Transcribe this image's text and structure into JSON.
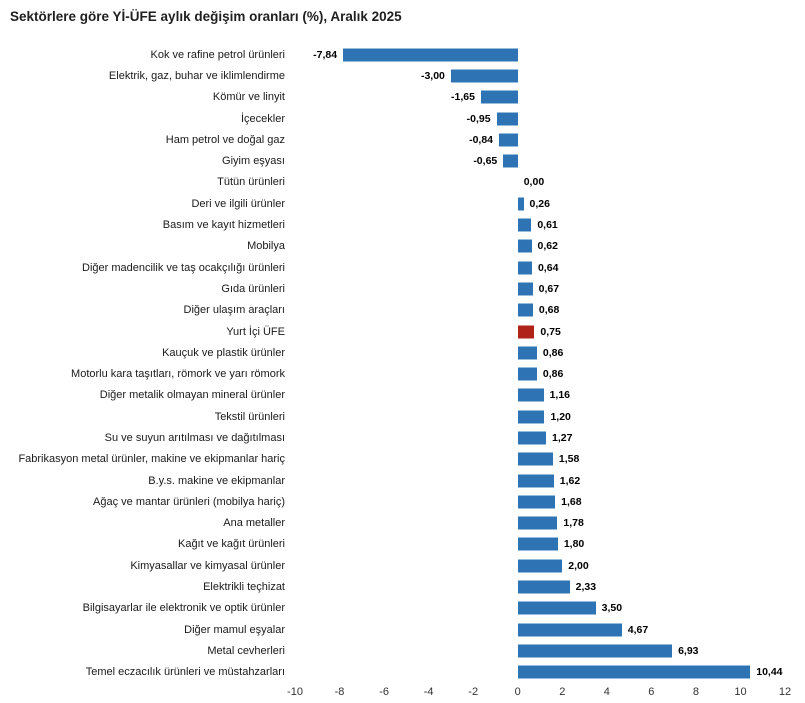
{
  "title": "Sektörlere göre Yİ-ÜFE aylık değişim oranları (%), Aralık 2025",
  "colors": {
    "bar": "#2E74B5",
    "highlight": "#B02318",
    "text": "#1A1A1A"
  },
  "chart_data": {
    "type": "bar",
    "orientation": "horizontal",
    "title": "Sektörlere göre Yİ-ÜFE aylık değişim oranları (%), Aralık 2025",
    "xlim": [
      -10,
      12
    ],
    "xticks": [
      -10,
      -8,
      -6,
      -4,
      -2,
      0,
      2,
      4,
      6,
      8,
      10,
      12
    ],
    "xtick_labels": [
      "-10",
      "-8",
      "-6",
      "-4",
      "-2",
      "0",
      "2",
      "4",
      "6",
      "8",
      "10",
      "12"
    ],
    "grid": false,
    "highlight_index": 13,
    "highlight_category": "Yurt İçi ÜFE",
    "categories": [
      "Kok ve rafine petrol ürünleri",
      "Elektrik, gaz, buhar ve iklimlendirme",
      "Kömür ve linyit",
      "İçecekler",
      "Ham petrol ve doğal gaz",
      "Giyim eşyası",
      "Tütün ürünleri",
      "Deri ve ilgili ürünler",
      "Basım ve kayıt hizmetleri",
      "Mobilya",
      "Diğer madencilik ve taş ocakçılığı ürünleri",
      "Gıda ürünleri",
      "Diğer ulaşım araçları",
      "Yurt İçi ÜFE",
      "Kauçuk ve plastik ürünler",
      "Motorlu kara taşıtları, römork ve yarı römork",
      "Diğer metalik olmayan mineral ürünler",
      "Tekstil ürünleri",
      "Su ve suyun arıtılması ve dağıtılması",
      "Fabrikasyon metal ürünler, makine ve ekipmanlar hariç",
      "B.y.s. makine ve ekipmanlar",
      "Ağaç ve mantar ürünleri (mobilya hariç)",
      "Ana metaller",
      "Kağıt ve kağıt ürünleri",
      "Kimyasallar ve kimyasal ürünler",
      "Elektrikli teçhizat",
      "Bilgisayarlar ile elektronik ve optik ürünler",
      "Diğer mamul eşyalar",
      "Metal cevherleri",
      "Temel eczacılık ürünleri ve müstahzarları"
    ],
    "values": [
      -7.84,
      -3.0,
      -1.65,
      -0.95,
      -0.84,
      -0.65,
      0.0,
      0.26,
      0.61,
      0.62,
      0.64,
      0.67,
      0.68,
      0.75,
      0.86,
      0.86,
      1.16,
      1.2,
      1.27,
      1.58,
      1.62,
      1.68,
      1.78,
      1.8,
      2.0,
      2.33,
      3.5,
      4.67,
      6.93,
      10.44
    ],
    "value_labels": [
      "-7,84",
      "-3,00",
      "-1,65",
      "-0,95",
      "-0,84",
      "-0,65",
      "0,00",
      "0,26",
      "0,61",
      "0,62",
      "0,64",
      "0,67",
      "0,68",
      "0,75",
      "0,86",
      "0,86",
      "1,16",
      "1,20",
      "1,27",
      "1,58",
      "1,62",
      "1,68",
      "1,78",
      "1,80",
      "2,00",
      "2,33",
      "3,50",
      "4,67",
      "6,93",
      "10,44"
    ]
  }
}
